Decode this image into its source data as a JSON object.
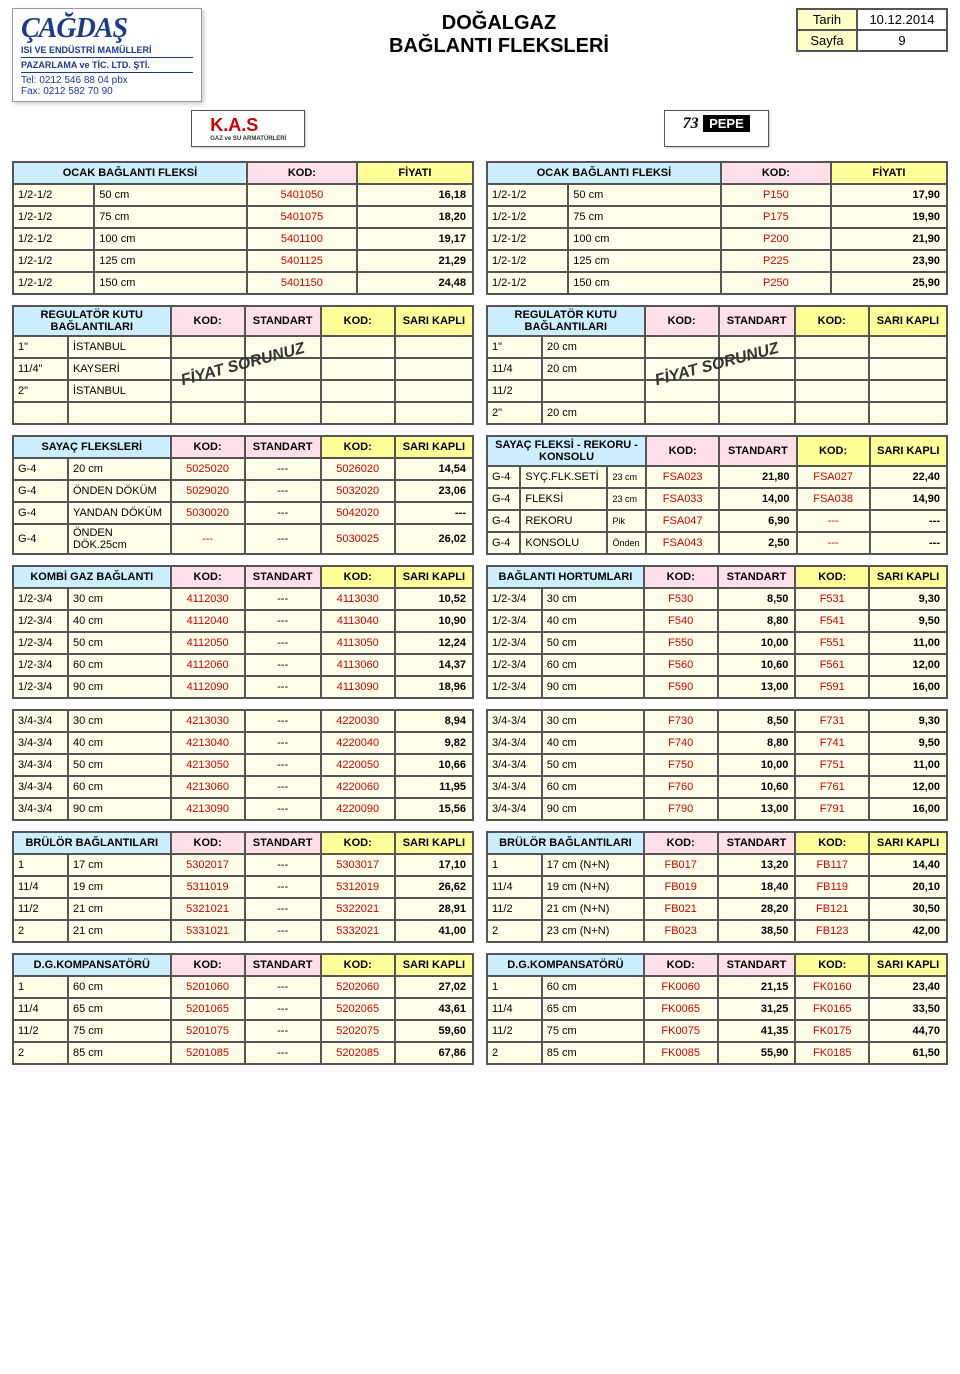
{
  "meta": {
    "title_l1": "DOĞALGAZ",
    "title_l2": "BAĞLANTI  FLEKSLERİ",
    "date_label": "Tarih",
    "date_value": "10.12.2014",
    "page_label": "Sayfa",
    "page_value": "9"
  },
  "logo": {
    "name": "ÇAĞDAŞ",
    "sub1": "ISI VE ENDÜSTRİ MAMÜLLERİ",
    "sub2": "PAZARLAMA ve TİC. LTD. ŞTİ.",
    "tel": "Tel: 0212 546 88 04 pbx",
    "fax": "Fax: 0212 582 70 90"
  },
  "brand_kas": "K.A.S",
  "brand_kas_sub": "GAZ ve SU ARMATÜRLERİ",
  "brand_pepe_num": "73",
  "brand_pepe_txt": "PEPE",
  "hdr_kod": "KOD:",
  "hdr_price": "FİYATI",
  "hdr_std": "STANDART",
  "hdr_sari": "SARI KAPLI",
  "overlay": "FİYAT SORUNUZ",
  "t_ocak_l": {
    "title": "OCAK BAĞLANTI FLEKSİ",
    "rows": [
      {
        "a": "1/2-1/2",
        "b": "50 cm",
        "k": "5401050",
        "p": "16,18"
      },
      {
        "a": "1/2-1/2",
        "b": "75 cm",
        "k": "5401075",
        "p": "18,20"
      },
      {
        "a": "1/2-1/2",
        "b": "100 cm",
        "k": "5401100",
        "p": "19,17"
      },
      {
        "a": "1/2-1/2",
        "b": "125 cm",
        "k": "5401125",
        "p": "21,29"
      },
      {
        "a": "1/2-1/2",
        "b": "150 cm",
        "k": "5401150",
        "p": "24,48"
      }
    ]
  },
  "t_ocak_r": {
    "title": "OCAK BAĞLANTI FLEKSİ",
    "rows": [
      {
        "a": "1/2-1/2",
        "b": "50 cm",
        "k": "P150",
        "p": "17,90"
      },
      {
        "a": "1/2-1/2",
        "b": "75 cm",
        "k": "P175",
        "p": "19,90"
      },
      {
        "a": "1/2-1/2",
        "b": "100 cm",
        "k": "P200",
        "p": "21,90"
      },
      {
        "a": "1/2-1/2",
        "b": "125 cm",
        "k": "P225",
        "p": "23,90"
      },
      {
        "a": "1/2-1/2",
        "b": "150 cm",
        "k": "P250",
        "p": "25,90"
      }
    ]
  },
  "t_reg_l": {
    "title": "REGULATÖR KUTU BAĞLANTILARI",
    "rows": [
      {
        "a": "1\"",
        "b": "İSTANBUL"
      },
      {
        "a": "11/4\"",
        "b": "KAYSERİ"
      },
      {
        "a": "2\"",
        "b": "İSTANBUL"
      },
      {
        "a": "",
        "b": ""
      }
    ]
  },
  "t_reg_r": {
    "title": "REGULATÖR KUTU BAĞLANTILARI",
    "rows": [
      {
        "a": "1\"",
        "b": "20 cm"
      },
      {
        "a": "11/4",
        "b": "20 cm"
      },
      {
        "a": "11/2",
        "b": ""
      },
      {
        "a": "2\"",
        "b": "20 cm"
      }
    ]
  },
  "t_sayac_l": {
    "title": "SAYAÇ FLEKSLERİ",
    "rows": [
      {
        "a": "G-4",
        "b": "20 cm",
        "k1": "5025020",
        "s": "---",
        "k2": "5026020",
        "p": "14,54"
      },
      {
        "a": "G-4",
        "b": "ÖNDEN DÖKÜM",
        "k1": "5029020",
        "s": "---",
        "k2": "5032020",
        "p": "23,06"
      },
      {
        "a": "G-4",
        "b": "YANDAN DÖKÜM",
        "k1": "5030020",
        "s": "---",
        "k2": "5042020",
        "p": "---"
      },
      {
        "a": "G-4",
        "b": "ÖNDEN DÖK.25cm",
        "k1": "---",
        "s": "---",
        "k2": "5030025",
        "p": "26,02"
      }
    ]
  },
  "t_sayac_r": {
    "title": "SAYAÇ FLEKSİ - REKORU - KONSOLU",
    "rows": [
      {
        "a": "G-4",
        "b": "SYÇ.FLK.SETİ",
        "n": "23 cm",
        "k1": "FSA023",
        "s": "21,80",
        "k2": "FSA027",
        "p": "22,40"
      },
      {
        "a": "G-4",
        "b": "FLEKSİ",
        "n": "23 cm",
        "k1": "FSA033",
        "s": "14,00",
        "k2": "FSA038",
        "p": "14,90"
      },
      {
        "a": "G-4",
        "b": "REKORU",
        "n": "Pik",
        "k1": "FSA047",
        "s": "6,90",
        "k2": "---",
        "p": "---"
      },
      {
        "a": "G-4",
        "b": "KONSOLU",
        "n": "Önden",
        "k1": "FSA043",
        "s": "2,50",
        "k2": "---",
        "p": "---"
      }
    ]
  },
  "t_kombi_l": {
    "title": "KOMBİ GAZ BAĞLANTI",
    "rows": [
      {
        "a": "1/2-3/4",
        "b": "30 cm",
        "k1": "4112030",
        "s": "---",
        "k2": "4113030",
        "p": "10,52"
      },
      {
        "a": "1/2-3/4",
        "b": "40 cm",
        "k1": "4112040",
        "s": "---",
        "k2": "4113040",
        "p": "10,90"
      },
      {
        "a": "1/2-3/4",
        "b": "50 cm",
        "k1": "4112050",
        "s": "---",
        "k2": "4113050",
        "p": "12,24"
      },
      {
        "a": "1/2-3/4",
        "b": "60 cm",
        "k1": "4112060",
        "s": "---",
        "k2": "4113060",
        "p": "14,37"
      },
      {
        "a": "1/2-3/4",
        "b": "90 cm",
        "k1": "4112090",
        "s": "---",
        "k2": "4113090",
        "p": "18,96"
      }
    ]
  },
  "t_hortum_r": {
    "title": "BAĞLANTI HORTUMLARI",
    "rows": [
      {
        "a": "1/2-3/4",
        "b": "30 cm",
        "k1": "F530",
        "s": "8,50",
        "k2": "F531",
        "p": "9,30"
      },
      {
        "a": "1/2-3/4",
        "b": "40 cm",
        "k1": "F540",
        "s": "8,80",
        "k2": "F541",
        "p": "9,50"
      },
      {
        "a": "1/2-3/4",
        "b": "50 cm",
        "k1": "F550",
        "s": "10,00",
        "k2": "F551",
        "p": "11,00"
      },
      {
        "a": "1/2-3/4",
        "b": "60 cm",
        "k1": "F560",
        "s": "10,60",
        "k2": "F561",
        "p": "12,00"
      },
      {
        "a": "1/2-3/4",
        "b": "90 cm",
        "k1": "F590",
        "s": "13,00",
        "k2": "F591",
        "p": "16,00"
      }
    ]
  },
  "t_3434_l": {
    "rows": [
      {
        "a": "3/4-3/4",
        "b": "30 cm",
        "k1": "4213030",
        "s": "---",
        "k2": "4220030",
        "p": "8,94"
      },
      {
        "a": "3/4-3/4",
        "b": "40 cm",
        "k1": "4213040",
        "s": "---",
        "k2": "4220040",
        "p": "9,82"
      },
      {
        "a": "3/4-3/4",
        "b": "50 cm",
        "k1": "4213050",
        "s": "---",
        "k2": "4220050",
        "p": "10,66"
      },
      {
        "a": "3/4-3/4",
        "b": "60 cm",
        "k1": "4213060",
        "s": "---",
        "k2": "4220060",
        "p": "11,95"
      },
      {
        "a": "3/4-3/4",
        "b": "90 cm",
        "k1": "4213090",
        "s": "---",
        "k2": "4220090",
        "p": "15,56"
      }
    ]
  },
  "t_3434_r": {
    "rows": [
      {
        "a": "3/4-3/4",
        "b": "30 cm",
        "k1": "F730",
        "s": "8,50",
        "k2": "F731",
        "p": "9,30"
      },
      {
        "a": "3/4-3/4",
        "b": "40 cm",
        "k1": "F740",
        "s": "8,80",
        "k2": "F741",
        "p": "9,50"
      },
      {
        "a": "3/4-3/4",
        "b": "50 cm",
        "k1": "F750",
        "s": "10,00",
        "k2": "F751",
        "p": "11,00"
      },
      {
        "a": "3/4-3/4",
        "b": "60 cm",
        "k1": "F760",
        "s": "10,60",
        "k2": "F761",
        "p": "12,00"
      },
      {
        "a": "3/4-3/4",
        "b": "90 cm",
        "k1": "F790",
        "s": "13,00",
        "k2": "F791",
        "p": "16,00"
      }
    ]
  },
  "t_brulor_l": {
    "title": "BRÜLÖR BAĞLANTILARI",
    "rows": [
      {
        "a": "1",
        "b": "17 cm",
        "k1": "5302017",
        "s": "---",
        "k2": "5303017",
        "p": "17,10"
      },
      {
        "a": "11/4",
        "b": "19 cm",
        "k1": "5311019",
        "s": "---",
        "k2": "5312019",
        "p": "26,62"
      },
      {
        "a": "11/2",
        "b": "21 cm",
        "k1": "5321021",
        "s": "---",
        "k2": "5322021",
        "p": "28,91"
      },
      {
        "a": "2",
        "b": "21 cm",
        "k1": "5331021",
        "s": "---",
        "k2": "5332021",
        "p": "41,00"
      }
    ]
  },
  "t_brulor_r": {
    "title": "BRÜLÖR BAĞLANTILARI",
    "rows": [
      {
        "a": "1",
        "b": "17 cm (N+N)",
        "k1": "FB017",
        "s": "13,20",
        "k2": "FB117",
        "p": "14,40"
      },
      {
        "a": "11/4",
        "b": "19 cm (N+N)",
        "k1": "FB019",
        "s": "18,40",
        "k2": "FB119",
        "p": "20,10"
      },
      {
        "a": "11/2",
        "b": "21 cm (N+N)",
        "k1": "FB021",
        "s": "28,20",
        "k2": "FB121",
        "p": "30,50"
      },
      {
        "a": "2",
        "b": "23 cm (N+N)",
        "k1": "FB023",
        "s": "38,50",
        "k2": "FB123",
        "p": "42,00"
      }
    ]
  },
  "t_komp_l": {
    "title": "D.G.KOMPANSATÖRÜ",
    "rows": [
      {
        "a": "1",
        "b": "60 cm",
        "k1": "5201060",
        "s": "---",
        "k2": "5202060",
        "p": "27,02"
      },
      {
        "a": "11/4",
        "b": "65 cm",
        "k1": "5201065",
        "s": "---",
        "k2": "5202065",
        "p": "43,61"
      },
      {
        "a": "11/2",
        "b": "75 cm",
        "k1": "5201075",
        "s": "---",
        "k2": "5202075",
        "p": "59,60"
      },
      {
        "a": "2",
        "b": "85 cm",
        "k1": "5201085",
        "s": "---",
        "k2": "5202085",
        "p": "67,86"
      }
    ]
  },
  "t_komp_r": {
    "title": "D.G.KOMPANSATÖRÜ",
    "rows": [
      {
        "a": "1",
        "b": "60 cm",
        "k1": "FK0060",
        "s": "21,15",
        "k2": "FK0160",
        "p": "23,40"
      },
      {
        "a": "11/4",
        "b": "65 cm",
        "k1": "FK0065",
        "s": "31,25",
        "k2": "FK0165",
        "p": "33,50"
      },
      {
        "a": "11/2",
        "b": "75 cm",
        "k1": "FK0075",
        "s": "41,35",
        "k2": "FK0175",
        "p": "44,70"
      },
      {
        "a": "2",
        "b": "85 cm",
        "k1": "FK0085",
        "s": "55,90",
        "k2": "FK0185",
        "p": "61,50"
      }
    ]
  }
}
